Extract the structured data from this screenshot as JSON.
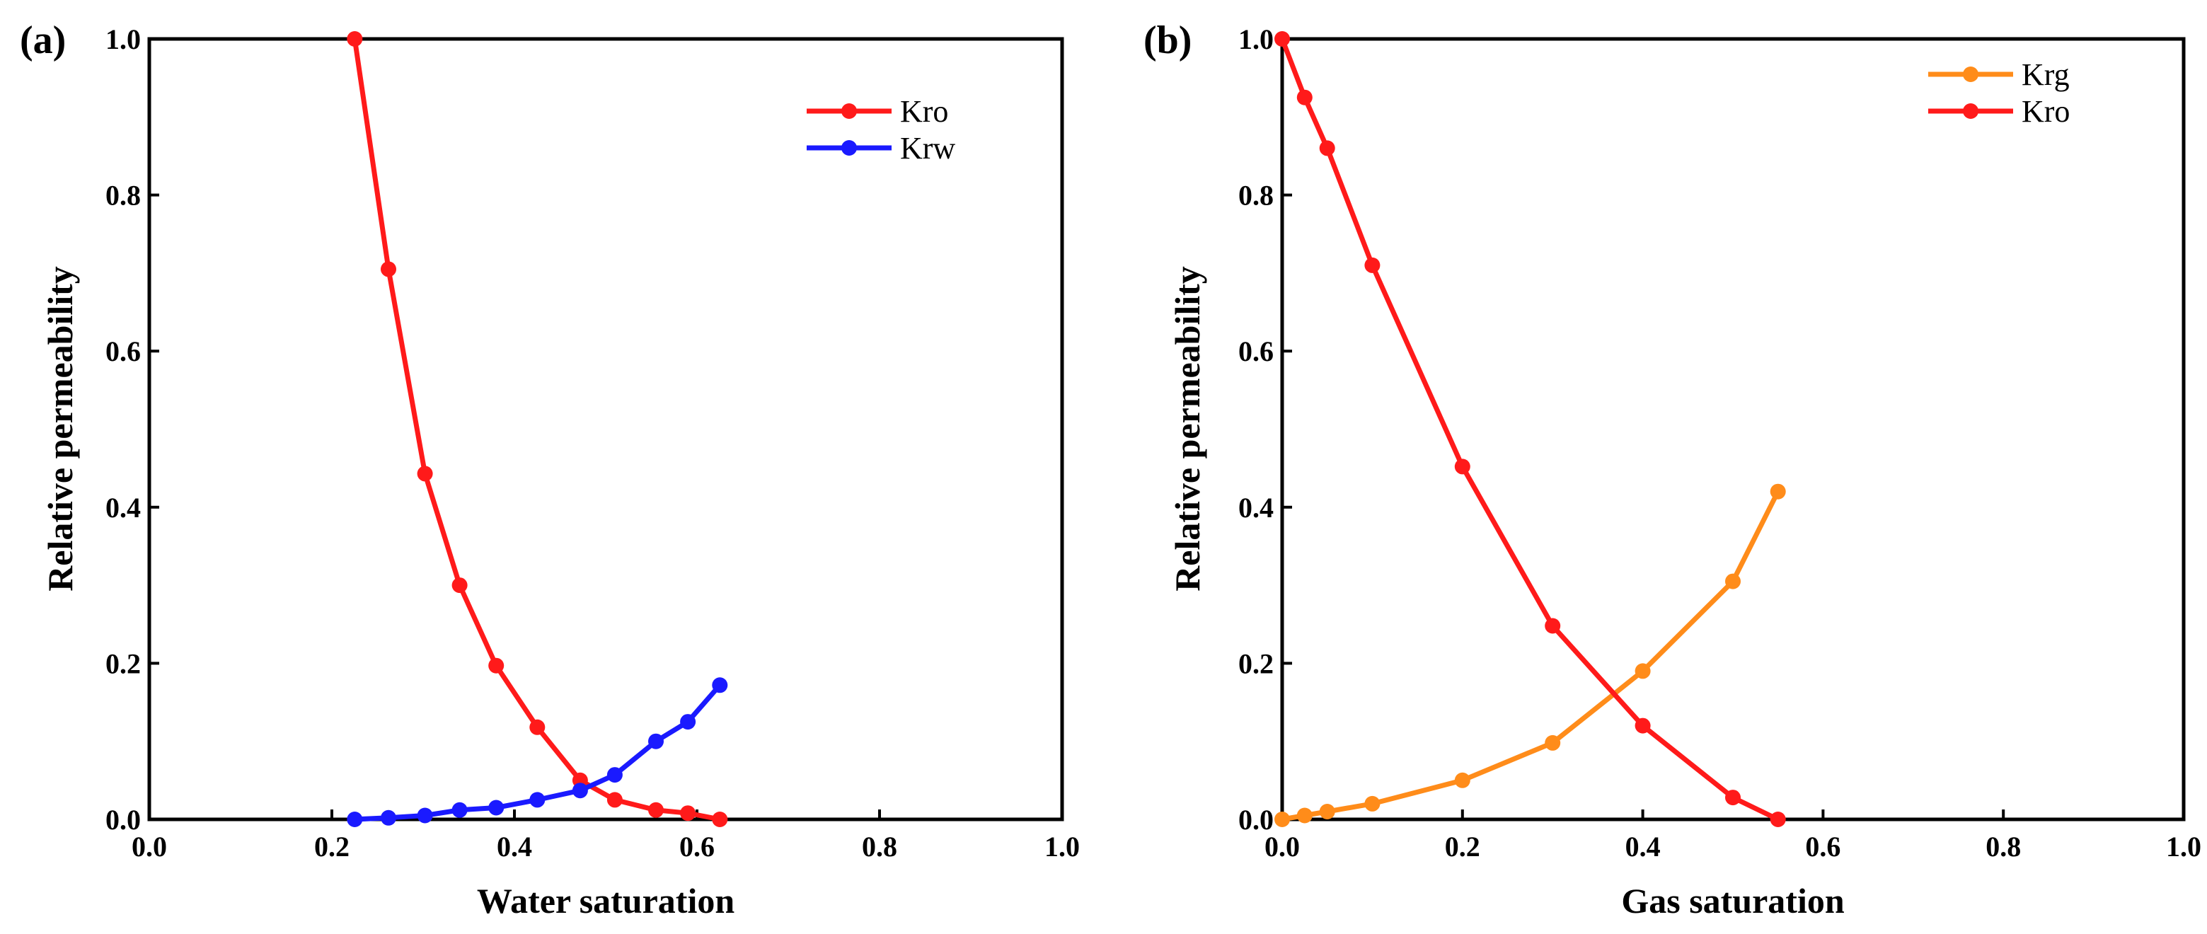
{
  "chart_data": [
    {
      "type": "line",
      "panel_label": "(a)",
      "title": "",
      "xlabel": "Water saturation",
      "ylabel": "Relative permeability",
      "xlim": [
        0.0,
        1.0
      ],
      "ylim": [
        0.0,
        1.0
      ],
      "xticks": [
        "0.0",
        "0.2",
        "0.4",
        "0.6",
        "0.8",
        "1.0"
      ],
      "yticks": [
        "0.0",
        "0.2",
        "0.4",
        "0.6",
        "0.8",
        "1.0"
      ],
      "grid": false,
      "legend_position": "top-right",
      "series": [
        {
          "name": "Kro",
          "color": "#ff1a1a",
          "x": [
            0.225,
            0.262,
            0.302,
            0.34,
            0.38,
            0.425,
            0.472,
            0.51,
            0.555,
            0.59,
            0.625
          ],
          "y": [
            1.0,
            0.705,
            0.443,
            0.3,
            0.197,
            0.118,
            0.05,
            0.025,
            0.012,
            0.008,
            0.0
          ]
        },
        {
          "name": "Krw",
          "color": "#1a1aff",
          "x": [
            0.225,
            0.262,
            0.302,
            0.34,
            0.38,
            0.425,
            0.472,
            0.51,
            0.555,
            0.59,
            0.625
          ],
          "y": [
            0.0,
            0.002,
            0.005,
            0.012,
            0.015,
            0.025,
            0.037,
            0.057,
            0.1,
            0.125,
            0.172
          ]
        }
      ]
    },
    {
      "type": "line",
      "panel_label": "(b)",
      "title": "",
      "xlabel": "Gas saturation",
      "ylabel": "Relative permeability",
      "xlim": [
        0.0,
        1.0
      ],
      "ylim": [
        0.0,
        1.0
      ],
      "xticks": [
        "0.0",
        "0.2",
        "0.4",
        "0.6",
        "0.8",
        "1.0"
      ],
      "yticks": [
        "0.0",
        "0.2",
        "0.4",
        "0.6",
        "0.8",
        "1.0"
      ],
      "grid": false,
      "legend_position": "top-right",
      "series": [
        {
          "name": "Krg",
          "color": "#ff8c1a",
          "x": [
            0.0,
            0.025,
            0.05,
            0.1,
            0.2,
            0.3,
            0.4,
            0.5,
            0.55
          ],
          "y": [
            0.0,
            0.005,
            0.01,
            0.02,
            0.05,
            0.098,
            0.19,
            0.305,
            0.42
          ]
        },
        {
          "name": "Kro",
          "color": "#ff1a1a",
          "x": [
            0.0,
            0.025,
            0.05,
            0.1,
            0.2,
            0.3,
            0.4,
            0.5,
            0.55
          ],
          "y": [
            1.0,
            0.925,
            0.86,
            0.71,
            0.452,
            0.248,
            0.12,
            0.028,
            0.0
          ]
        }
      ]
    }
  ]
}
